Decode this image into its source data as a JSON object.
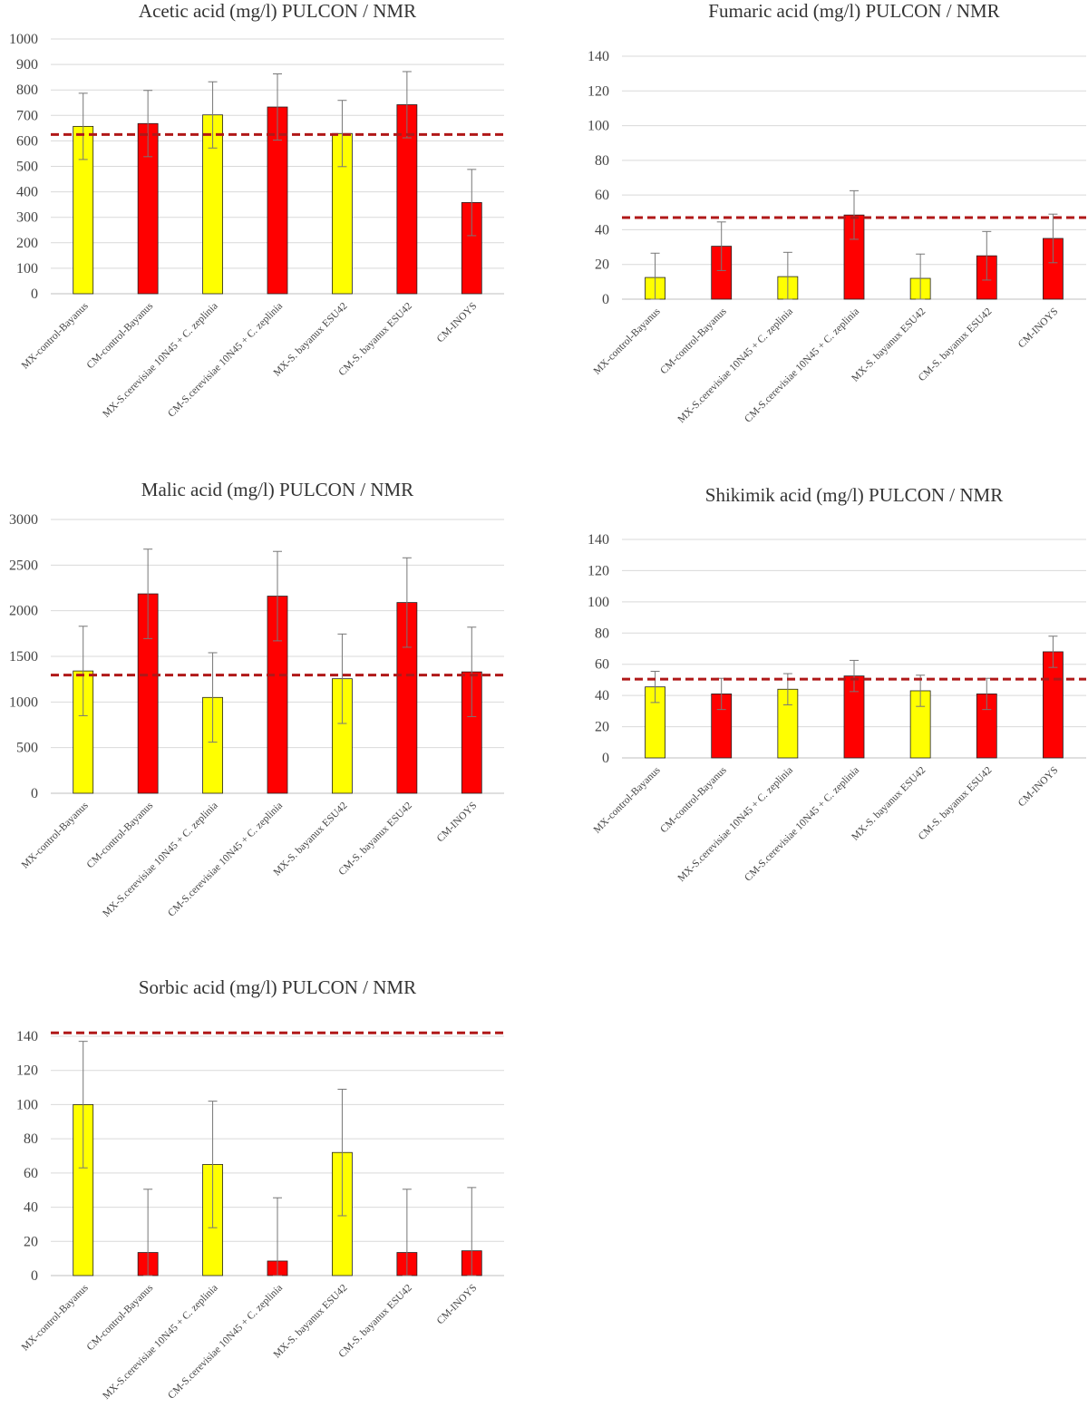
{
  "colors": {
    "yellow_bar": "#ffff00",
    "red_bar": "#ff0000",
    "bar_outline": "#222222",
    "error_bar": "#777777",
    "reference_line": "#b01818",
    "gridline": "#d9d9d9",
    "axis": "#bfbfbf"
  },
  "chart_data": [
    {
      "type": "bar",
      "title": "Acetic acid (mg/l) PULCON / NMR",
      "categories": [
        "MX-control-Bayanus",
        "CM-control-Bayanus",
        "MX-S.cerevisiae 10N45 + C. zeplinia",
        "CM-S.cerevisiae 10N45 + C. zeplinia",
        "MX-S. bayanux ESU42",
        "CM-S. bayanux ESU42",
        "CM-INOYS"
      ],
      "values": [
        657,
        668,
        702,
        733,
        629,
        742,
        358
      ],
      "error": [
        130,
        130,
        130,
        130,
        130,
        130,
        130
      ],
      "bar_colors": [
        "yellow",
        "red",
        "yellow",
        "red",
        "yellow",
        "red",
        "red"
      ],
      "reference_line": 625,
      "ylim": [
        0,
        1000
      ],
      "yticks": [
        0,
        100,
        200,
        300,
        400,
        500,
        600,
        700,
        800,
        900,
        1000
      ],
      "xlabel": "",
      "ylabel": "",
      "grid": true,
      "legend": "none"
    },
    {
      "type": "bar",
      "title": "Fumaric acid (mg/l) PULCON / NMR",
      "categories": [
        "MX-control-Bayanus",
        "CM-control-Bayanus",
        "MX-S.cerevisiae 10N45 + C. zeplinia",
        "CM-S.cerevisiae 10N45 + C. zeplinia",
        "MX-S. bayanux ESU42",
        "CM-S. bayanux ESU42",
        "CM-INOYS"
      ],
      "values": [
        12.5,
        30.5,
        13,
        48.5,
        12,
        25,
        35
      ],
      "error": [
        14,
        14,
        14,
        14,
        14,
        14,
        14
      ],
      "bar_colors": [
        "yellow",
        "red",
        "yellow",
        "red",
        "yellow",
        "red",
        "red"
      ],
      "reference_line": 47,
      "ylim": [
        0,
        140
      ],
      "yticks": [
        0,
        20,
        40,
        60,
        80,
        100,
        120,
        140
      ],
      "xlabel": "",
      "ylabel": "",
      "grid": true,
      "legend": "none"
    },
    {
      "type": "bar",
      "title": "Malic acid (mg/l) PULCON / NMR",
      "categories": [
        "MX-control-Bayanus",
        "CM-control-Bayanus",
        "MX-S.cerevisiae 10N45 + C. zeplinia",
        "CM-S.cerevisiae 10N45 + C. zeplinia",
        "MX-S. bayanux ESU42",
        "CM-S. bayanux ESU42",
        "CM-INOYS"
      ],
      "values": [
        1340,
        2185,
        1050,
        2160,
        1255,
        2090,
        1330
      ],
      "error": [
        490,
        490,
        490,
        490,
        490,
        490,
        490
      ],
      "bar_colors": [
        "yellow",
        "red",
        "yellow",
        "red",
        "yellow",
        "red",
        "red"
      ],
      "reference_line": 1295,
      "ylim": [
        0,
        3000
      ],
      "yticks": [
        0,
        500,
        1000,
        1500,
        2000,
        2500,
        3000
      ],
      "xlabel": "",
      "ylabel": "",
      "grid": true,
      "legend": "none"
    },
    {
      "type": "bar",
      "title": "Shikimik acid (mg/l) PULCON / NMR",
      "categories": [
        "MX-control-Bayanus",
        "CM-control-Bayanus",
        "MX-S.cerevisiae 10N45 + C. zeplinia",
        "CM-S.cerevisiae 10N45 + C. zeplinia",
        "MX-S. bayanux ESU42",
        "CM-S. bayanux ESU42",
        "CM-INOYS"
      ],
      "values": [
        45.5,
        41,
        44,
        52.5,
        43,
        41,
        68
      ],
      "error": [
        10,
        10,
        10,
        10,
        10,
        10,
        10
      ],
      "bar_colors": [
        "yellow",
        "red",
        "yellow",
        "red",
        "yellow",
        "red",
        "red"
      ],
      "reference_line": 50.5,
      "ylim": [
        0,
        140
      ],
      "yticks": [
        0,
        20,
        40,
        60,
        80,
        100,
        120,
        140
      ],
      "xlabel": "",
      "ylabel": "",
      "grid": true,
      "legend": "none"
    },
    {
      "type": "bar",
      "title": "Sorbic acid (mg/l) PULCON / NMR",
      "categories": [
        "MX-control-Bayanus",
        "CM-control-Bayanus",
        "MX-S.cerevisiae 10N45 + C. zeplinia",
        "CM-S.cerevisiae 10N45 + C. zeplinia",
        "MX-S. bayanux ESU42",
        "CM-S. bayanux ESU42",
        "CM-INOYS"
      ],
      "values": [
        100,
        13.5,
        65,
        8.5,
        72,
        13.5,
        14.5
      ],
      "error": [
        37,
        37,
        37,
        37,
        37,
        37,
        37
      ],
      "bar_colors": [
        "yellow",
        "red",
        "yellow",
        "red",
        "yellow",
        "red",
        "red"
      ],
      "reference_line": 142,
      "ylim": [
        0,
        140
      ],
      "yticks": [
        0,
        20,
        40,
        60,
        80,
        100,
        120,
        140
      ],
      "xlabel": "",
      "ylabel": "",
      "grid": true,
      "legend": "none"
    }
  ]
}
